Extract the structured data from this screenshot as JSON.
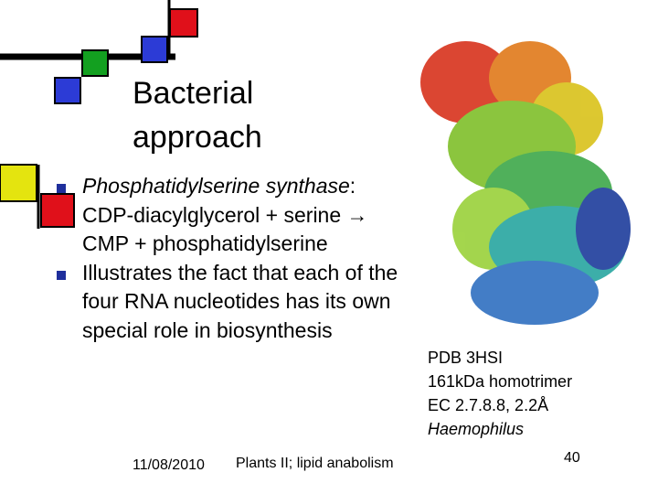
{
  "slide": {
    "title": "Bacterial approach",
    "bullets": [
      {
        "term": "Phosphatidylserine synthase",
        "text": ": CDP-diacylglycerol + serine → CMP + phosphatidylserine"
      },
      {
        "text": "Illustrates the fact that each of the four RNA nucleotides has its own special role in biosynthesis"
      }
    ],
    "caption": {
      "lines": [
        "PDB 3HSI",
        "161kDa homotrimer",
        "EC 2.7.8.8, 2.2Å"
      ],
      "organism": "Haemophilus"
    },
    "footer": {
      "date": "11/08/2010",
      "title": "Plants II; lipid anabolism",
      "page": "40"
    }
  }
}
